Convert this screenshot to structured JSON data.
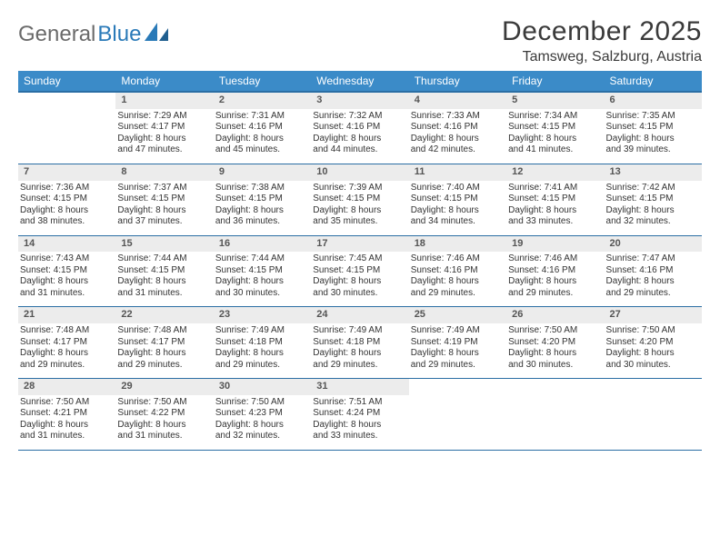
{
  "logo": {
    "part1": "General",
    "part2": "Blue"
  },
  "title": "December 2025",
  "location": "Tamsweg, Salzburg, Austria",
  "colors": {
    "header_bg": "#3b8bc8",
    "header_border": "#2a6ea4",
    "daynum_bg": "#ececec",
    "text": "#333333",
    "logo_gray": "#6a6a6a",
    "logo_blue": "#2a7ab8"
  },
  "weekdays": [
    "Sunday",
    "Monday",
    "Tuesday",
    "Wednesday",
    "Thursday",
    "Friday",
    "Saturday"
  ],
  "weeks": [
    [
      null,
      {
        "n": "1",
        "sr": "Sunrise: 7:29 AM",
        "ss": "Sunset: 4:17 PM",
        "d1": "Daylight: 8 hours",
        "d2": "and 47 minutes."
      },
      {
        "n": "2",
        "sr": "Sunrise: 7:31 AM",
        "ss": "Sunset: 4:16 PM",
        "d1": "Daylight: 8 hours",
        "d2": "and 45 minutes."
      },
      {
        "n": "3",
        "sr": "Sunrise: 7:32 AM",
        "ss": "Sunset: 4:16 PM",
        "d1": "Daylight: 8 hours",
        "d2": "and 44 minutes."
      },
      {
        "n": "4",
        "sr": "Sunrise: 7:33 AM",
        "ss": "Sunset: 4:16 PM",
        "d1": "Daylight: 8 hours",
        "d2": "and 42 minutes."
      },
      {
        "n": "5",
        "sr": "Sunrise: 7:34 AM",
        "ss": "Sunset: 4:15 PM",
        "d1": "Daylight: 8 hours",
        "d2": "and 41 minutes."
      },
      {
        "n": "6",
        "sr": "Sunrise: 7:35 AM",
        "ss": "Sunset: 4:15 PM",
        "d1": "Daylight: 8 hours",
        "d2": "and 39 minutes."
      }
    ],
    [
      {
        "n": "7",
        "sr": "Sunrise: 7:36 AM",
        "ss": "Sunset: 4:15 PM",
        "d1": "Daylight: 8 hours",
        "d2": "and 38 minutes."
      },
      {
        "n": "8",
        "sr": "Sunrise: 7:37 AM",
        "ss": "Sunset: 4:15 PM",
        "d1": "Daylight: 8 hours",
        "d2": "and 37 minutes."
      },
      {
        "n": "9",
        "sr": "Sunrise: 7:38 AM",
        "ss": "Sunset: 4:15 PM",
        "d1": "Daylight: 8 hours",
        "d2": "and 36 minutes."
      },
      {
        "n": "10",
        "sr": "Sunrise: 7:39 AM",
        "ss": "Sunset: 4:15 PM",
        "d1": "Daylight: 8 hours",
        "d2": "and 35 minutes."
      },
      {
        "n": "11",
        "sr": "Sunrise: 7:40 AM",
        "ss": "Sunset: 4:15 PM",
        "d1": "Daylight: 8 hours",
        "d2": "and 34 minutes."
      },
      {
        "n": "12",
        "sr": "Sunrise: 7:41 AM",
        "ss": "Sunset: 4:15 PM",
        "d1": "Daylight: 8 hours",
        "d2": "and 33 minutes."
      },
      {
        "n": "13",
        "sr": "Sunrise: 7:42 AM",
        "ss": "Sunset: 4:15 PM",
        "d1": "Daylight: 8 hours",
        "d2": "and 32 minutes."
      }
    ],
    [
      {
        "n": "14",
        "sr": "Sunrise: 7:43 AM",
        "ss": "Sunset: 4:15 PM",
        "d1": "Daylight: 8 hours",
        "d2": "and 31 minutes."
      },
      {
        "n": "15",
        "sr": "Sunrise: 7:44 AM",
        "ss": "Sunset: 4:15 PM",
        "d1": "Daylight: 8 hours",
        "d2": "and 31 minutes."
      },
      {
        "n": "16",
        "sr": "Sunrise: 7:44 AM",
        "ss": "Sunset: 4:15 PM",
        "d1": "Daylight: 8 hours",
        "d2": "and 30 minutes."
      },
      {
        "n": "17",
        "sr": "Sunrise: 7:45 AM",
        "ss": "Sunset: 4:15 PM",
        "d1": "Daylight: 8 hours",
        "d2": "and 30 minutes."
      },
      {
        "n": "18",
        "sr": "Sunrise: 7:46 AM",
        "ss": "Sunset: 4:16 PM",
        "d1": "Daylight: 8 hours",
        "d2": "and 29 minutes."
      },
      {
        "n": "19",
        "sr": "Sunrise: 7:46 AM",
        "ss": "Sunset: 4:16 PM",
        "d1": "Daylight: 8 hours",
        "d2": "and 29 minutes."
      },
      {
        "n": "20",
        "sr": "Sunrise: 7:47 AM",
        "ss": "Sunset: 4:16 PM",
        "d1": "Daylight: 8 hours",
        "d2": "and 29 minutes."
      }
    ],
    [
      {
        "n": "21",
        "sr": "Sunrise: 7:48 AM",
        "ss": "Sunset: 4:17 PM",
        "d1": "Daylight: 8 hours",
        "d2": "and 29 minutes."
      },
      {
        "n": "22",
        "sr": "Sunrise: 7:48 AM",
        "ss": "Sunset: 4:17 PM",
        "d1": "Daylight: 8 hours",
        "d2": "and 29 minutes."
      },
      {
        "n": "23",
        "sr": "Sunrise: 7:49 AM",
        "ss": "Sunset: 4:18 PM",
        "d1": "Daylight: 8 hours",
        "d2": "and 29 minutes."
      },
      {
        "n": "24",
        "sr": "Sunrise: 7:49 AM",
        "ss": "Sunset: 4:18 PM",
        "d1": "Daylight: 8 hours",
        "d2": "and 29 minutes."
      },
      {
        "n": "25",
        "sr": "Sunrise: 7:49 AM",
        "ss": "Sunset: 4:19 PM",
        "d1": "Daylight: 8 hours",
        "d2": "and 29 minutes."
      },
      {
        "n": "26",
        "sr": "Sunrise: 7:50 AM",
        "ss": "Sunset: 4:20 PM",
        "d1": "Daylight: 8 hours",
        "d2": "and 30 minutes."
      },
      {
        "n": "27",
        "sr": "Sunrise: 7:50 AM",
        "ss": "Sunset: 4:20 PM",
        "d1": "Daylight: 8 hours",
        "d2": "and 30 minutes."
      }
    ],
    [
      {
        "n": "28",
        "sr": "Sunrise: 7:50 AM",
        "ss": "Sunset: 4:21 PM",
        "d1": "Daylight: 8 hours",
        "d2": "and 31 minutes."
      },
      {
        "n": "29",
        "sr": "Sunrise: 7:50 AM",
        "ss": "Sunset: 4:22 PM",
        "d1": "Daylight: 8 hours",
        "d2": "and 31 minutes."
      },
      {
        "n": "30",
        "sr": "Sunrise: 7:50 AM",
        "ss": "Sunset: 4:23 PM",
        "d1": "Daylight: 8 hours",
        "d2": "and 32 minutes."
      },
      {
        "n": "31",
        "sr": "Sunrise: 7:51 AM",
        "ss": "Sunset: 4:24 PM",
        "d1": "Daylight: 8 hours",
        "d2": "and 33 minutes."
      },
      null,
      null,
      null
    ]
  ]
}
